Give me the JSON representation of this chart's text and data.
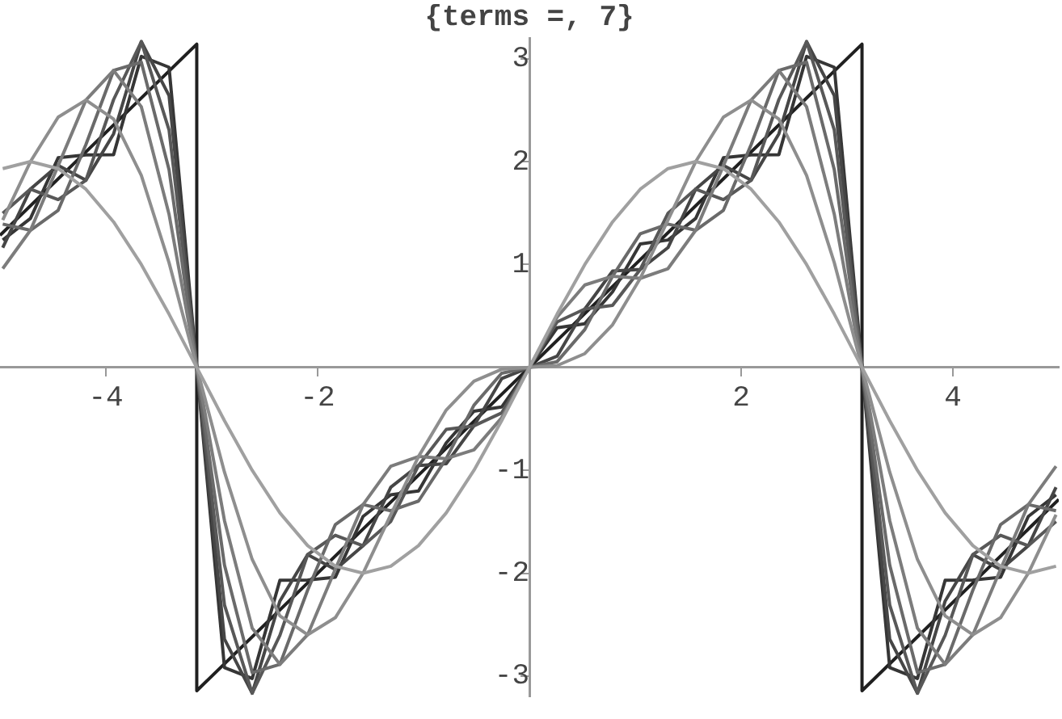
{
  "chart_data": {
    "type": "line",
    "title": "{terms =, 7}",
    "x": [
      -4.9742,
      -4.7124,
      -4.4506,
      -4.1888,
      -3.927,
      -3.6652,
      -3.4034,
      -3.1416,
      -2.8798,
      -2.618,
      -2.3562,
      -2.0944,
      -1.8326,
      -1.5708,
      -1.309,
      -1.0472,
      -0.7854,
      -0.5236,
      -0.2618,
      0,
      0.2618,
      0.5236,
      0.7854,
      1.0472,
      1.309,
      1.5708,
      1.8326,
      2.0944,
      2.3562,
      2.618,
      2.8798,
      3.1416,
      3.4034,
      3.6652,
      3.927,
      4.1888,
      4.4506,
      4.7124,
      4.9742
    ],
    "series": [
      {
        "color": "#a0a0a0",
        "values": [
          1.932,
          2,
          1.932,
          1.732,
          1.414,
          1,
          0.518,
          0,
          -0.518,
          -1,
          -1.414,
          -1.732,
          -1.932,
          -2,
          -1.932,
          -1.732,
          -1.414,
          -1,
          -0.518,
          0,
          0.518,
          1,
          1.414,
          1.732,
          1.932,
          2,
          1.932,
          1.732,
          1.414,
          1,
          0.518,
          0,
          -0.518,
          -1,
          -1.414,
          -1.732,
          -1.932,
          -2,
          -1.932
        ]
      },
      {
        "color": "#8e8e8e",
        "values": [
          1.432,
          2,
          2.432,
          2.598,
          2.414,
          1.866,
          1.018,
          0,
          -1.018,
          -1.866,
          -2.414,
          -2.598,
          -2.432,
          -2,
          -1.432,
          -0.866,
          -0.414,
          -0.134,
          -0.018,
          0,
          0.018,
          0.134,
          0.414,
          0.866,
          1.432,
          2,
          2.432,
          2.598,
          2.414,
          1.866,
          1.018,
          0,
          -1.018,
          -1.866,
          -2.414,
          -2.598,
          -2.432,
          -2,
          -1.432
        ]
      },
      {
        "color": "#7c7c7c",
        "values": [
          0.96,
          1.333,
          1.96,
          2.598,
          2.886,
          2.533,
          1.489,
          0,
          -1.489,
          -2.533,
          -2.886,
          -2.598,
          -1.96,
          -1.333,
          -0.96,
          -0.866,
          -0.886,
          -0.801,
          -0.489,
          0,
          0.489,
          0.801,
          0.886,
          0.866,
          0.96,
          1.333,
          1.96,
          2.598,
          2.886,
          2.533,
          1.489,
          0,
          -1.489,
          -2.533,
          -2.886,
          -2.598,
          -1.96,
          -1.333,
          -0.96
        ]
      },
      {
        "color": "#6a6a6a",
        "values": [
          1.393,
          1.333,
          1.527,
          2.165,
          2.886,
          2.966,
          1.922,
          0,
          -1.922,
          -2.966,
          -2.886,
          -2.165,
          -1.527,
          -1.333,
          -1.393,
          -1.299,
          -0.886,
          -0.368,
          -0.056,
          0,
          0.056,
          0.368,
          0.886,
          1.299,
          1.393,
          1.333,
          1.527,
          2.165,
          2.886,
          2.966,
          1.922,
          0,
          -1.922,
          -2.966,
          -2.886,
          -2.165,
          -1.527,
          -1.333,
          -1.393
        ]
      },
      {
        "color": "#585858",
        "values": [
          1.497,
          1.733,
          1.631,
          1.819,
          2.603,
          3.166,
          2.308,
          0,
          -2.308,
          -3.166,
          -2.603,
          -1.819,
          -1.631,
          -1.733,
          -1.497,
          -0.953,
          -0.603,
          -0.568,
          -0.442,
          0,
          0.442,
          0.568,
          0.603,
          0.953,
          1.497,
          1.733,
          1.631,
          1.819,
          2.603,
          3.166,
          2.308,
          0,
          -2.308,
          -3.166,
          -2.603,
          -1.819,
          -1.631,
          -1.733,
          -1.497
        ]
      },
      {
        "color": "#464646",
        "values": [
          1.164,
          1.733,
          1.964,
          1.819,
          2.27,
          3.166,
          2.641,
          0,
          -2.641,
          -3.166,
          -2.27,
          -1.819,
          -1.964,
          -1.733,
          -1.164,
          -0.953,
          -0.936,
          -0.568,
          -0.109,
          0,
          0.109,
          0.568,
          0.936,
          0.953,
          1.164,
          1.733,
          1.964,
          1.819,
          2.27,
          3.166,
          2.641,
          0,
          -2.641,
          -3.166,
          -2.27,
          -1.819,
          -1.964,
          -1.733,
          -1.164
        ]
      },
      {
        "color": "#363636",
        "values": [
          1.238,
          1.448,
          2.038,
          2.066,
          2.068,
          3.023,
          2.917,
          0,
          -2.917,
          -3.023,
          -2.068,
          -2.066,
          -2.038,
          -1.448,
          -1.238,
          -1.2,
          -0.734,
          -0.425,
          -0.385,
          0,
          0.385,
          0.425,
          0.734,
          1.2,
          1.238,
          1.448,
          2.038,
          2.066,
          2.068,
          3.023,
          2.917,
          0,
          -2.917,
          -3.023,
          -2.068,
          -2.066,
          -2.038,
          -1.448,
          -1.238
        ]
      },
      {
        "color": "#202020",
        "x": [
          -5,
          -3.1416,
          -3.1416,
          3.1416,
          3.1416,
          5
        ],
        "values": [
          1.2832,
          3.1416,
          -3.1416,
          3.1416,
          -3.1416,
          -1.2832
        ]
      }
    ],
    "xlim": [
      -5,
      5
    ],
    "ylim": [
      -3.2,
      3.2
    ],
    "xticks": [
      -4,
      -2,
      2,
      4
    ],
    "yticks": [
      -3,
      -2,
      -1,
      1,
      2,
      3
    ],
    "grid": false,
    "legend": false,
    "marker": "none",
    "line_style": "solid"
  }
}
